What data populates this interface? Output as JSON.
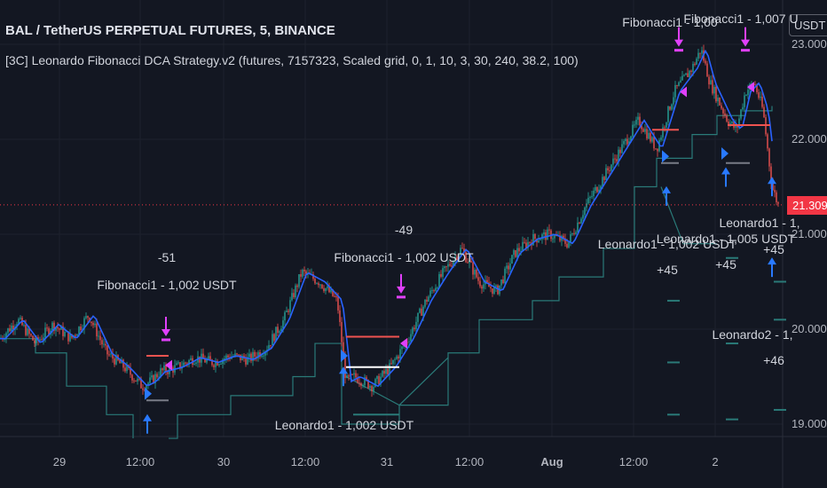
{
  "header": {
    "symbol_line": "BAL / TetherUS PERPETUAL FUTURES, 5, BINANCE",
    "strategy_line": "[3C] Leonardo Fibonacci DCA Strategy.v2 (futures, 7157323, Scaled grid, 0, 1, 10, 3, 30, 240, 38.2, 100)",
    "unit_button": "USDT"
  },
  "colors": {
    "background": "#131722",
    "up_candle": "#26a69a",
    "down_candle": "#ef5350",
    "avg_line": "#2962ff",
    "grid_line": "#2a7a78",
    "entry_arrow": "#2979ff",
    "exit_arrow": "#e040fb",
    "price_line": "#f23645"
  },
  "chart_data": {
    "type": "candlestick",
    "ylim": [
      18.85,
      23.35
    ],
    "y_ticks": [
      "19.000",
      "20.000",
      "21.000",
      "22.000",
      "23.000"
    ],
    "x_ticks": [
      "29",
      "12:00",
      "30",
      "12:00",
      "31",
      "12:00",
      "Aug",
      "12:00",
      "2"
    ],
    "current_price": "21.309",
    "price_path": [
      [
        0,
        19.9
      ],
      [
        20,
        20.1
      ],
      [
        40,
        19.85
      ],
      [
        60,
        20.05
      ],
      [
        80,
        19.9
      ],
      [
        100,
        20.15
      ],
      [
        120,
        19.75
      ],
      [
        140,
        19.6
      ],
      [
        160,
        19.4
      ],
      [
        170,
        19.45
      ],
      [
        180,
        19.55
      ],
      [
        200,
        19.6
      ],
      [
        220,
        19.7
      ],
      [
        240,
        19.65
      ],
      [
        260,
        19.72
      ],
      [
        280,
        19.68
      ],
      [
        300,
        19.8
      ],
      [
        320,
        20.1
      ],
      [
        340,
        20.6
      ],
      [
        360,
        20.5
      ],
      [
        380,
        20.3
      ],
      [
        390,
        19.45
      ],
      [
        400,
        19.5
      ],
      [
        420,
        19.4
      ],
      [
        440,
        19.6
      ],
      [
        460,
        19.9
      ],
      [
        480,
        20.3
      ],
      [
        500,
        20.6
      ],
      [
        520,
        20.85
      ],
      [
        540,
        20.5
      ],
      [
        560,
        20.4
      ],
      [
        580,
        20.8
      ],
      [
        600,
        20.95
      ],
      [
        620,
        21.0
      ],
      [
        640,
        20.9
      ],
      [
        660,
        21.3
      ],
      [
        680,
        21.6
      ],
      [
        700,
        21.9
      ],
      [
        720,
        22.2
      ],
      [
        740,
        21.9
      ],
      [
        760,
        22.5
      ],
      [
        780,
        22.75
      ],
      [
        790,
        22.95
      ],
      [
        800,
        22.6
      ],
      [
        810,
        22.4
      ],
      [
        820,
        22.2
      ],
      [
        830,
        22.1
      ],
      [
        840,
        22.5
      ],
      [
        850,
        22.6
      ],
      [
        860,
        22.3
      ],
      [
        870,
        21.5
      ],
      [
        877,
        21.309
      ]
    ],
    "annotations": [
      {
        "text": "-51",
        "x": 188,
        "y": 291
      },
      {
        "text": "Fibonacci1 - 1,002 USDT",
        "x": 188,
        "y": 322
      },
      {
        "text": "-49",
        "x": 455,
        "y": 260
      },
      {
        "text": "Fibonacci1 - 1,002 USDT",
        "x": 455,
        "y": 291
      },
      {
        "text": "Leonardo1 - 1,002 USDT",
        "x": 388,
        "y": 480
      },
      {
        "text": "Fibonacci1 - 1,00",
        "x": 755,
        "y": 26
      },
      {
        "text": "Fibonacci1 - 1,007 U",
        "x": 835,
        "y": 22
      },
      {
        "text": "Leonardo1 - 1,002 USDT",
        "x": 752,
        "y": 276
      },
      {
        "text": "+45",
        "x": 752,
        "y": 305
      },
      {
        "text": "Leonardo1 - 1,005 USDT",
        "x": 818,
        "y": 270
      },
      {
        "text": "+45",
        "x": 818,
        "y": 299
      },
      {
        "text": "Leonardo1 - 1,",
        "x": 856,
        "y": 252
      },
      {
        "text": "+45",
        "x": 872,
        "y": 282
      },
      {
        "text": "Leonardo2 - 1,",
        "x": 848,
        "y": 378
      },
      {
        "text": "+46",
        "x": 872,
        "y": 407
      }
    ]
  }
}
